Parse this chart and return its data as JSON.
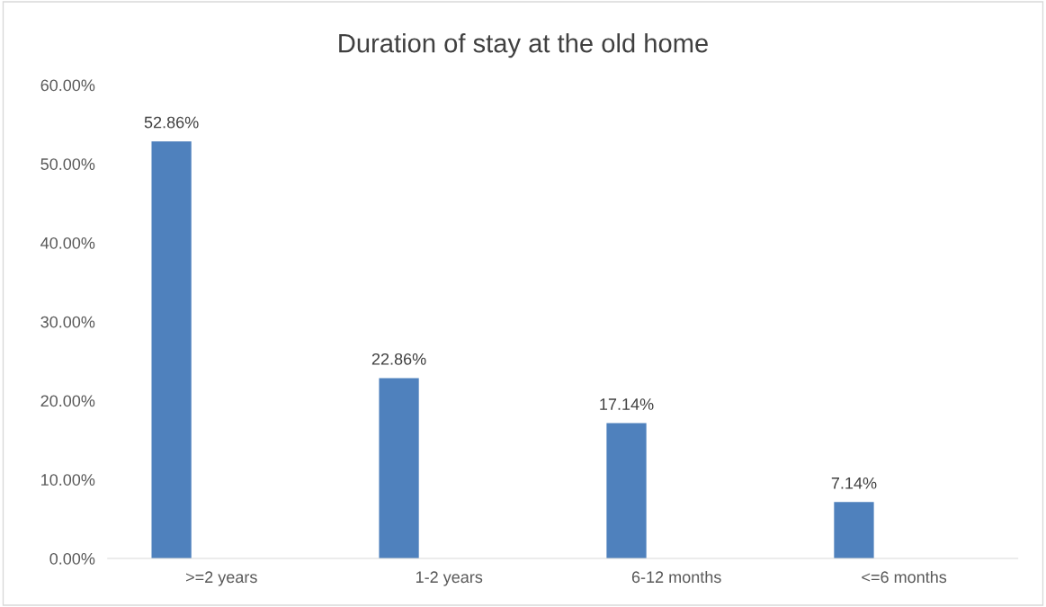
{
  "chart_data": {
    "type": "bar",
    "title": "Duration of stay at the old home",
    "categories": [
      ">=2 years",
      "1-2 years",
      "6-12 months",
      "<=6 months"
    ],
    "values": [
      52.86,
      22.86,
      17.14,
      7.14
    ],
    "value_labels": [
      "52.86%",
      "22.86%",
      "17.14%",
      "7.14%"
    ],
    "color": "#4f81bd",
    "ylim": [
      0,
      60
    ],
    "yticks": [
      {
        "value": 0,
        "label": "0.00%"
      },
      {
        "value": 10,
        "label": "10.00%"
      },
      {
        "value": 20,
        "label": "20.00%"
      },
      {
        "value": 30,
        "label": "30.00%"
      },
      {
        "value": 40,
        "label": "40.00%"
      },
      {
        "value": 50,
        "label": "50.00%"
      },
      {
        "value": 60,
        "label": "60.00%"
      }
    ],
    "grid": false
  }
}
